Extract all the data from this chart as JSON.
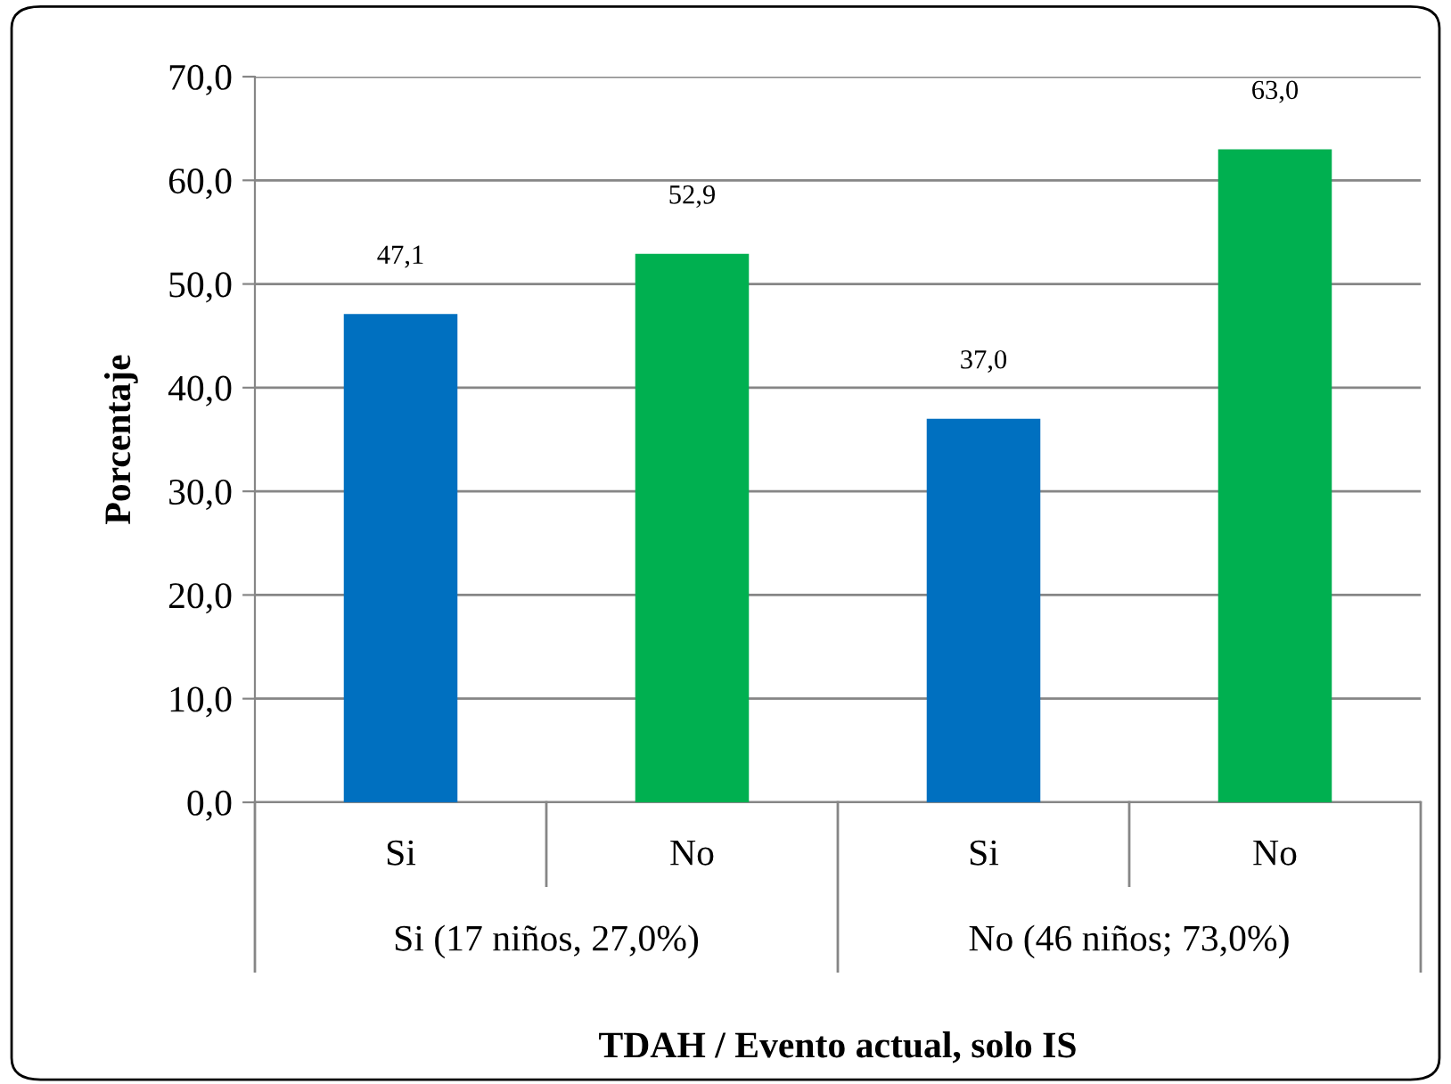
{
  "chart_data": {
    "type": "bar",
    "xlabel": "TDAH / Evento actual, solo IS",
    "ylabel": "Porcentaje",
    "categories": [
      "Si",
      "No",
      "Si",
      "No"
    ],
    "values": [
      47.1,
      52.9,
      37.0,
      63.0
    ],
    "colors": [
      "#0070c0",
      "#00b050",
      "#0070c0",
      "#00b050"
    ],
    "value_labels": [
      "47,1",
      "52,9",
      "37,0",
      "63,0"
    ],
    "annotations": [
      "Si (17 niños, 27,0%)",
      "No (46 niños; 73,0%)"
    ],
    "ylim": [
      0,
      70
    ],
    "yticks": [
      {
        "value": 0,
        "label": "0,0"
      },
      {
        "value": 10,
        "label": "10,0"
      },
      {
        "value": 20,
        "label": "20,0"
      },
      {
        "value": 30,
        "label": "30,0"
      },
      {
        "value": 40,
        "label": "40,0"
      },
      {
        "value": 50,
        "label": "50,0"
      },
      {
        "value": 60,
        "label": "60,0"
      },
      {
        "value": 70,
        "label": "70,0"
      }
    ],
    "grid": "y",
    "legend": false
  }
}
